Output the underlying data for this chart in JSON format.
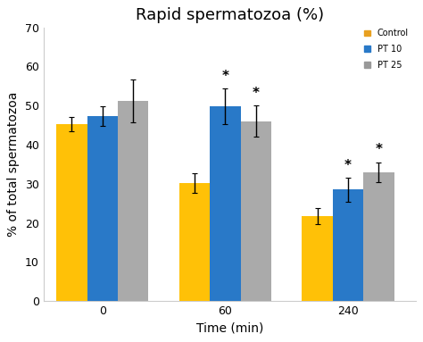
{
  "title": "Rapid spermatozoa (%)",
  "xlabel": "Time (min)",
  "ylabel": "% of total spermatozoa",
  "categories": [
    "0",
    "60",
    "240"
  ],
  "bar_labels": [
    "Control",
    "PT 10",
    "PT 25"
  ],
  "bar_colors": [
    "#FFC107",
    "#2979C8",
    "#AAAAAA"
  ],
  "legend_marker_colors": [
    "#E8A020",
    "#2979C8",
    "#999999"
  ],
  "values": [
    [
      45.2,
      30.2,
      21.7
    ],
    [
      47.3,
      49.8,
      28.5
    ],
    [
      51.2,
      46.0,
      33.0
    ]
  ],
  "errors": [
    [
      1.8,
      2.5,
      2.0
    ],
    [
      2.5,
      4.5,
      3.0
    ],
    [
      5.5,
      4.0,
      2.5
    ]
  ],
  "ylim": [
    0,
    70
  ],
  "yticks": [
    0,
    10,
    20,
    30,
    40,
    50,
    60,
    70
  ],
  "title_fontsize": 13,
  "axis_label_fontsize": 10,
  "tick_fontsize": 9,
  "legend_fontsize": 7,
  "bar_width": 0.25,
  "background_color": "#FFFFFF",
  "star_fontsize": 11
}
